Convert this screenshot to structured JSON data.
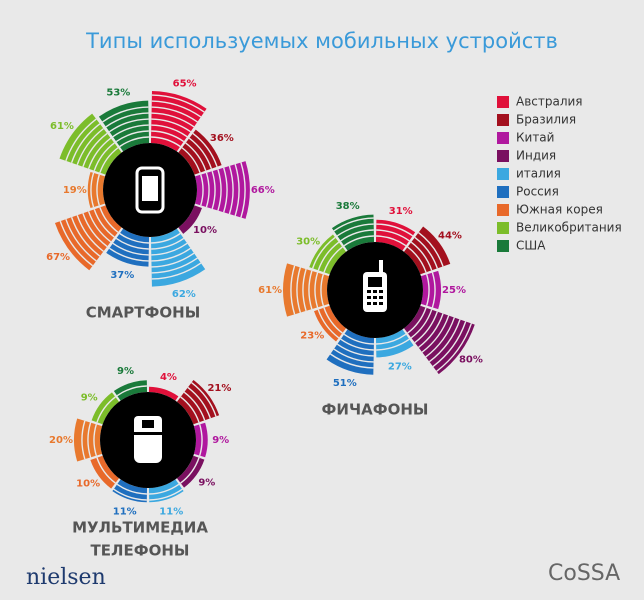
{
  "title": "Типы используемых мобильных устройств",
  "footer": {
    "left": "nielsen",
    "right": "CoSSA"
  },
  "chart_data": [
    {
      "type": "radial",
      "title": [
        "СМАРТФОНЫ"
      ],
      "categories": [
        "Австралия",
        "Бразилия",
        "Китай",
        "Индия",
        "италия",
        "Россия",
        "Южная корея",
        null,
        "Великобритания",
        "США"
      ],
      "colors": [
        "#e0103a",
        "#a3101e",
        "#b0189e",
        "#7a1060",
        "#3ba8e0",
        "#1f6fbf",
        "#e8692a",
        "#e8792e",
        "#7cbd2a",
        "#1a7a3a"
      ],
      "values": [
        65,
        36,
        66,
        10,
        62,
        37,
        67,
        19,
        61,
        53
      ],
      "value_labels": [
        "65%",
        "36%",
        "66%",
        "10%",
        "62%",
        "37%",
        "67%",
        "19%",
        "61%",
        "53%"
      ]
    },
    {
      "type": "radial",
      "title": [
        "ФИЧАФОНЫ"
      ],
      "categories": [
        "Австралия",
        "Бразилия",
        "Китай",
        "Индия",
        "италия",
        "Россия",
        "Южная корея",
        null,
        "Великобритания",
        "США"
      ],
      "colors": [
        "#e0103a",
        "#a3101e",
        "#b0189e",
        "#7a1060",
        "#3ba8e0",
        "#1f6fbf",
        "#e8692a",
        "#e8792e",
        "#7cbd2a",
        "#1a7a3a"
      ],
      "values": [
        31,
        44,
        25,
        80,
        27,
        51,
        23,
        61,
        30,
        38
      ],
      "value_labels": [
        "31%",
        "44%",
        "25%",
        "80%",
        "27%",
        "51%",
        "23%",
        "61%",
        "30%",
        "38%"
      ]
    },
    {
      "type": "radial",
      "title": [
        "МУЛЬТИМЕДИА",
        "ТЕЛЕФОНЫ"
      ],
      "categories": [
        "Австралия",
        "Бразилия",
        "Китай",
        "Индия",
        "италия",
        "Россия",
        "Южная корея",
        null,
        "Великобритания",
        "США"
      ],
      "colors": [
        "#e0103a",
        "#a3101e",
        "#b0189e",
        "#7a1060",
        "#3ba8e0",
        "#1f6fbf",
        "#e8692a",
        "#e8792e",
        "#7cbd2a",
        "#1a7a3a"
      ],
      "values": [
        4,
        21,
        9,
        9,
        11,
        11,
        10,
        20,
        9,
        9
      ],
      "value_labels": [
        "4%",
        "21%",
        "9%",
        "9%",
        "11%",
        "11%",
        "10%",
        "20%",
        "9%",
        "9%"
      ]
    }
  ]
}
